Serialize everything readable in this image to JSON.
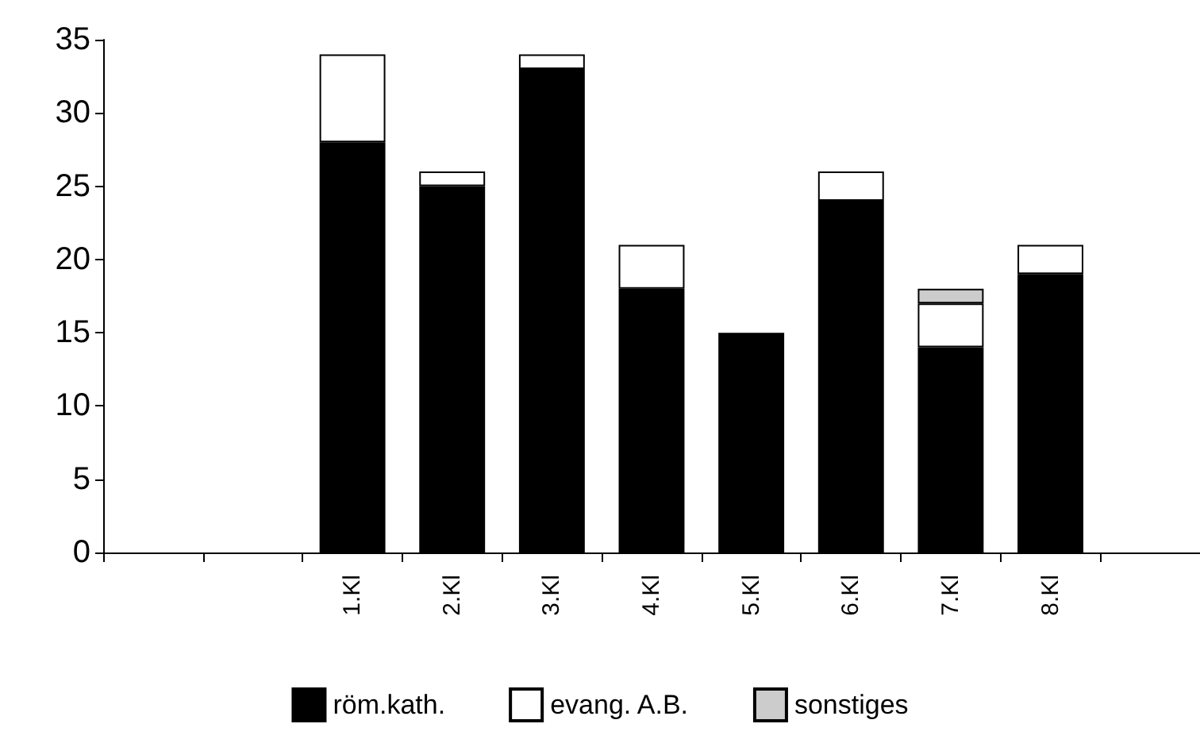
{
  "chart_data": {
    "type": "bar",
    "stacked": true,
    "categories": [
      null,
      null,
      "1.Kl",
      "2.Kl",
      "3.Kl",
      "4.Kl",
      "5.Kl",
      "6.Kl",
      "7.Kl",
      "8.Kl",
      null
    ],
    "series": [
      {
        "name": "röm.kath.",
        "color": "#000000",
        "values": [
          null,
          null,
          28,
          25,
          33,
          18,
          15,
          24,
          14,
          19,
          null
        ]
      },
      {
        "name": "evang. A.B.",
        "color": "#ffffff",
        "values": [
          null,
          null,
          6,
          1,
          1,
          3,
          0,
          2,
          3,
          2,
          null
        ]
      },
      {
        "name": "sonstiges",
        "color": "#cccccc",
        "values": [
          null,
          null,
          0,
          0,
          0,
          0,
          0,
          0,
          1,
          0,
          null
        ]
      }
    ],
    "ylim": [
      0,
      35
    ],
    "yticks": [
      0,
      5,
      10,
      15,
      20,
      25,
      30,
      35
    ],
    "grid": false,
    "legend": "bottom"
  }
}
